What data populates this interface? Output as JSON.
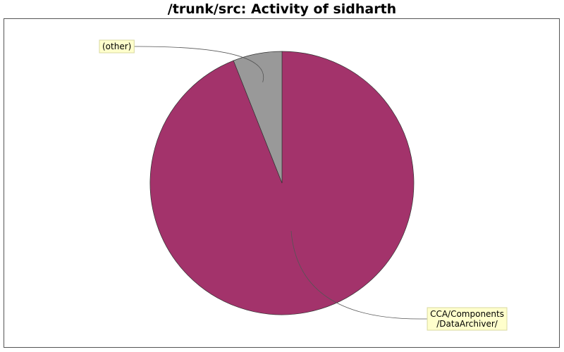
{
  "chart_data": {
    "type": "pie",
    "title": "/trunk/src: Activity of sidharth",
    "slices": [
      {
        "label_lines": [
          "CCA/Components",
          "/DataArchiver/"
        ],
        "value": 94,
        "color": "#A3336B"
      },
      {
        "label_lines": [
          "(other)"
        ],
        "value": 6,
        "color": "#999999"
      }
    ],
    "label_box_color": "#FFFFCC",
    "grid": false,
    "legend": "none"
  }
}
